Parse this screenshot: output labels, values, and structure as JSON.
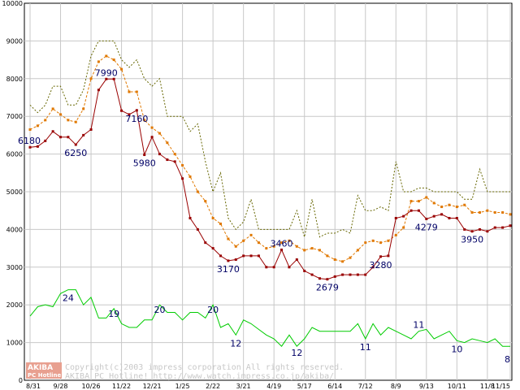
{
  "chart_data": {
    "type": "line",
    "ylim": [
      0,
      10000
    ],
    "yticks": [
      0,
      1000,
      2000,
      3000,
      4000,
      5000,
      6000,
      7000,
      8000,
      9000,
      10000
    ],
    "xticks": [
      "8/31",
      "9/28",
      "10/26",
      "11/22",
      "12/21",
      "1/25",
      "2/22",
      "3/21",
      "4/19",
      "5/17",
      "6/14",
      "7/12",
      "8/9",
      "9/13",
      "10/11",
      "11/8",
      "11/15"
    ],
    "grid": true,
    "series": [
      {
        "color": "#666600",
        "style": "dotted",
        "values": [
          7300,
          7100,
          7300,
          7800,
          7800,
          7300,
          7300,
          7700,
          8600,
          9000,
          9000,
          9000,
          8500,
          8300,
          8500,
          8000,
          7800,
          8000,
          7000,
          7000,
          7000,
          6600,
          6800,
          5800,
          5000,
          5500,
          4300,
          4000,
          4200,
          4800,
          4000,
          4000,
          4000,
          4000,
          4000,
          4500,
          3800,
          4800,
          3800,
          3900,
          3900,
          4000,
          3900,
          4900,
          4500,
          4500,
          4600,
          4500,
          5800,
          5000,
          5000,
          5100,
          5100,
          5000,
          5000,
          5000,
          5000,
          4800,
          4800,
          5600,
          5000,
          5000,
          5000,
          5000
        ]
      },
      {
        "color": "#e07800",
        "style": "dashed-markers",
        "values": [
          6650,
          6750,
          6900,
          7200,
          7050,
          6900,
          6850,
          7200,
          8000,
          8450,
          8600,
          8500,
          8250,
          7650,
          7650,
          6900,
          6700,
          6550,
          6300,
          6000,
          5700,
          5400,
          5000,
          4750,
          4300,
          4150,
          3750,
          3550,
          3700,
          3850,
          3650,
          3500,
          3550,
          3650,
          3700,
          3550,
          3450,
          3500,
          3450,
          3300,
          3200,
          3150,
          3250,
          3450,
          3650,
          3700,
          3650,
          3700,
          3850,
          4050,
          4750,
          4750,
          4850,
          4700,
          4600,
          4650,
          4600,
          4650,
          4450,
          4450,
          4500,
          4450,
          4450,
          4400
        ]
      },
      {
        "color": "#990000",
        "style": "solid-markers",
        "values": [
          6180,
          6200,
          6350,
          6600,
          6450,
          6450,
          6250,
          6500,
          6650,
          7700,
          7990,
          7990,
          7150,
          7050,
          7160,
          5980,
          6450,
          6000,
          5850,
          5800,
          5350,
          4300,
          4000,
          3650,
          3500,
          3300,
          3170,
          3200,
          3300,
          3300,
          3300,
          3000,
          3000,
          3460,
          3000,
          3200,
          2900,
          2800,
          2700,
          2679,
          2750,
          2800,
          2800,
          2800,
          2800,
          3000,
          3280,
          3300,
          4300,
          4350,
          4500,
          4500,
          4279,
          4350,
          4400,
          4300,
          4300,
          4000,
          3950,
          4000,
          3950,
          4050,
          4050,
          4100
        ]
      },
      {
        "color": "#00cc00",
        "style": "solid",
        "values": [
          1700,
          1950,
          2000,
          1950,
          2300,
          2400,
          2400,
          2000,
          2200,
          1650,
          1650,
          1900,
          1500,
          1400,
          1400,
          1600,
          1600,
          2000,
          1800,
          1800,
          1600,
          1800,
          1800,
          1650,
          2000,
          1400,
          1500,
          1200,
          1600,
          1500,
          1350,
          1200,
          1100,
          900,
          1200,
          900,
          1100,
          1400,
          1300,
          1300,
          1300,
          1300,
          1300,
          1500,
          1100,
          1500,
          1200,
          1400,
          1300,
          1200,
          1100,
          1300,
          1350,
          1100,
          1200,
          1300,
          1050,
          1000,
          1100,
          1050,
          1000,
          1100,
          900,
          900
        ]
      }
    ],
    "annotations": [
      {
        "text": "6180"
      },
      {
        "text": "7990"
      },
      {
        "text": "6250"
      },
      {
        "text": "7160"
      },
      {
        "text": "5980"
      },
      {
        "text": "3170"
      },
      {
        "text": "3460"
      },
      {
        "text": "2679"
      },
      {
        "text": "3280"
      },
      {
        "text": "4279"
      },
      {
        "text": "3950"
      },
      {
        "text": "24"
      },
      {
        "text": "19"
      },
      {
        "text": "20"
      },
      {
        "text": "20"
      },
      {
        "text": "12"
      },
      {
        "text": "12"
      },
      {
        "text": "11"
      },
      {
        "text": "11"
      },
      {
        "text": "10"
      },
      {
        "text": "8"
      }
    ],
    "watermark": {
      "logo_line1": "AKIBA",
      "logo_line2": "PC Hotline!",
      "line1": "Copyright(c)2003 impress corporation All rights reserved.",
      "line2": "AKIBA PC Hotline!  http://www.watch.impress.co.jp/akiba/"
    }
  }
}
